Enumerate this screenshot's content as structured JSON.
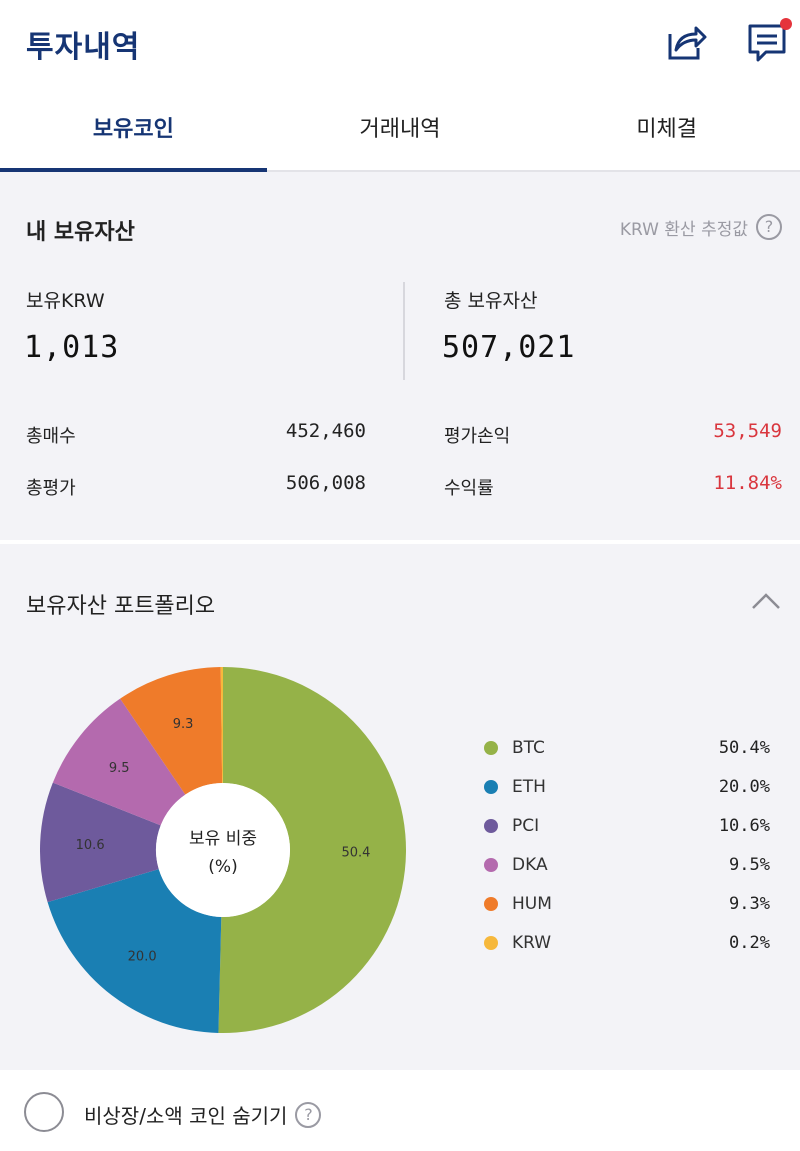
{
  "header": {
    "title": "투자내역",
    "share_icon": "share-icon",
    "message_icon": "message-icon",
    "accent": "#163574",
    "notification_color": "#e5343c"
  },
  "tabs": [
    {
      "label": "보유코인",
      "active": true
    },
    {
      "label": "거래내역",
      "active": false
    },
    {
      "label": "미체결",
      "active": false
    }
  ],
  "assets": {
    "title": "내 보유자산",
    "krw_note": "KRW 환산 추정값",
    "held_krw_label": "보유KRW",
    "held_krw_value": "1,013",
    "total_assets_label": "총 보유자산",
    "total_assets_value": "507,021",
    "total_buy_label": "총매수",
    "total_buy_value": "452,460",
    "total_eval_label": "총평가",
    "total_eval_value": "506,008",
    "pnl_label": "평가손익",
    "pnl_value": "53,549",
    "return_label": "수익률",
    "return_value": "11.84%",
    "profit_color": "#d9363e"
  },
  "portfolio": {
    "title": "보유자산 포트폴리오",
    "center_line1": "보유 비중",
    "center_line2": "(%)",
    "collapse_icon": "chevron-up-icon"
  },
  "chart_data": {
    "type": "pie",
    "title": "",
    "categories": [
      "BTC",
      "ETH",
      "PCI",
      "DKA",
      "HUM",
      "KRW"
    ],
    "values": [
      50.4,
      20.0,
      10.6,
      9.5,
      9.3,
      0.2
    ],
    "labels": [
      "50.4",
      "20.0",
      "10.6",
      "9.5",
      "9.3",
      ""
    ],
    "legend_pct": [
      "50.4%",
      "20.0%",
      "10.6%",
      "9.5%",
      "9.3%",
      "0.2%"
    ],
    "colors": [
      "#95b248",
      "#1a7fb3",
      "#6e5a9c",
      "#b46aae",
      "#ef7b2a",
      "#f6b83c"
    ],
    "legend_position": "right",
    "donut": true
  },
  "bottom": {
    "hide_label": "비상장/소액 코인 숨기기"
  }
}
